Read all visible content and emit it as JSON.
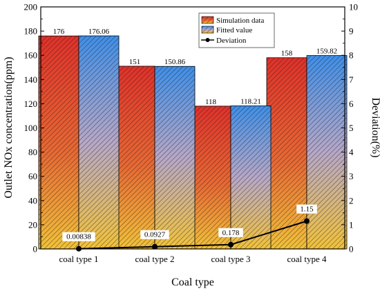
{
  "chart_data": {
    "type": "bar",
    "title": "",
    "xlabel": "Coal type",
    "ylabel": "Outlet NOx concentration(ppm)",
    "y2label": "Deviation(%)",
    "categories": [
      "coal type 1",
      "coal type 2",
      "coal type 3",
      "coal type 4"
    ],
    "ylim": [
      0,
      200
    ],
    "y2lim": [
      0,
      10
    ],
    "yticks": [
      "0",
      "20",
      "40",
      "60",
      "80",
      "100",
      "120",
      "140",
      "160",
      "180",
      "200"
    ],
    "y2ticks": [
      "0",
      "1",
      "2",
      "3",
      "4",
      "5",
      "6",
      "7",
      "8",
      "9",
      "10"
    ],
    "series": [
      {
        "name": "Simulation data",
        "type": "bar",
        "axis": "left",
        "values": [
          176,
          151,
          118,
          158
        ],
        "labels": [
          "176",
          "151",
          "118",
          "158"
        ],
        "color_top": "#e0312a",
        "color_bottom": "#f2c23a"
      },
      {
        "name": "Fitted value",
        "type": "bar",
        "axis": "left",
        "values": [
          176.06,
          150.86,
          118.21,
          159.82
        ],
        "labels": [
          "176.06",
          "150.86",
          "118.21",
          "159.82"
        ],
        "color_top": "#3f8fe8",
        "color_bottom": "#f2c23a"
      },
      {
        "name": "Deviation",
        "type": "line",
        "axis": "right",
        "values": [
          0.00838,
          0.0927,
          0.178,
          1.15
        ],
        "labels": [
          "0.00838",
          "0.0927",
          "0.178",
          "1.15"
        ],
        "color": "#000000"
      }
    ],
    "legend": "top-right",
    "grid": false
  }
}
